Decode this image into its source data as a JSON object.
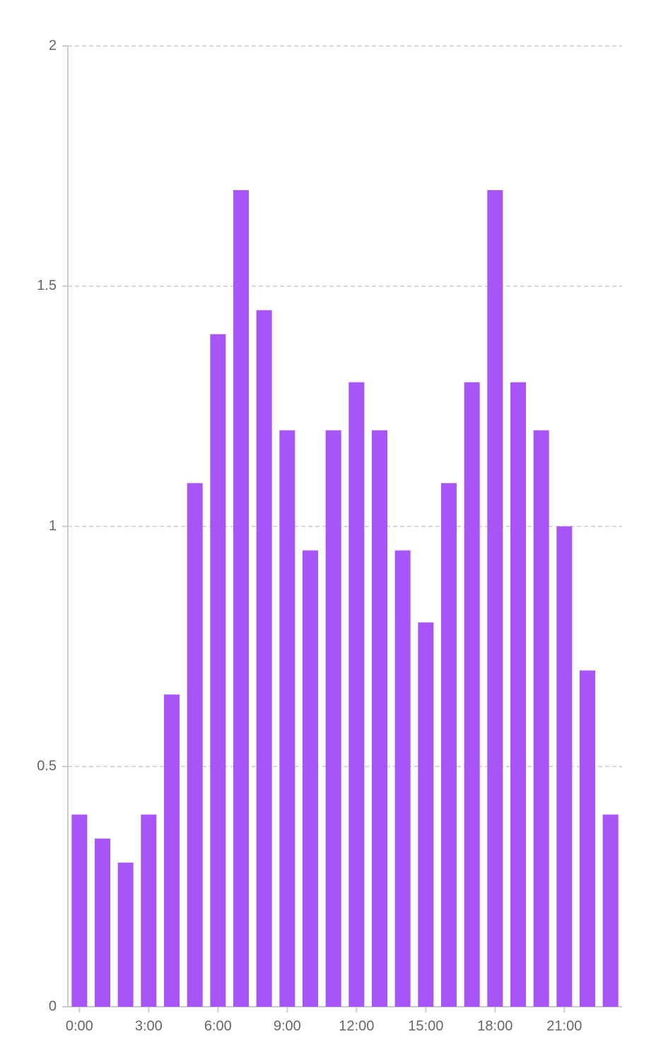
{
  "chart_data": {
    "type": "bar",
    "categories": [
      "0:00",
      null,
      null,
      "3:00",
      null,
      null,
      "6:00",
      null,
      null,
      "9:00",
      null,
      null,
      "12:00",
      null,
      null,
      "15:00",
      null,
      null,
      "18:00",
      null,
      null,
      "21:00",
      null,
      null
    ],
    "values": [
      0.4,
      0.35,
      0.3,
      0.4,
      0.65,
      1.09,
      1.4,
      1.7,
      1.45,
      1.2,
      0.95,
      1.2,
      1.3,
      1.2,
      0.95,
      0.8,
      1.09,
      1.3,
      1.7,
      1.3,
      1.2,
      1.0,
      0.7,
      0.4
    ],
    "color": "#a855f7",
    "ylim": [
      0,
      2
    ],
    "yticks": [
      0,
      0.5,
      1,
      1.5,
      2
    ],
    "grid": true
  }
}
